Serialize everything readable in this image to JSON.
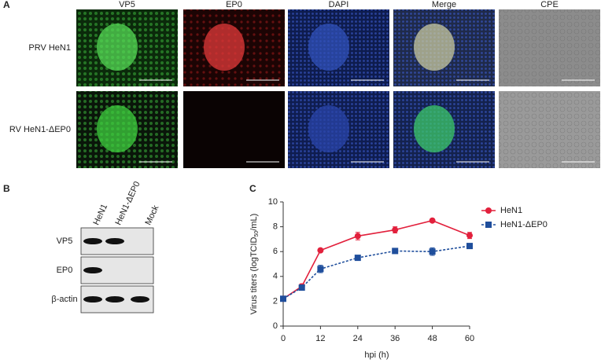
{
  "panel_a": {
    "label": "A",
    "columns": [
      "VP5",
      "EP0",
      "DAPI",
      "Merge",
      "CPE"
    ],
    "rows": [
      "PRV HeN1",
      "RV HeN1-ΔEP0"
    ]
  },
  "panel_b": {
    "label": "B",
    "lanes": [
      "HeN1",
      "HeN1-ΔEP0",
      "Mock"
    ],
    "bands": [
      "VP5",
      "EP0",
      "β-actin"
    ]
  },
  "chart_data": {
    "label": "C",
    "type": "line",
    "x_label": "hpi (h)",
    "y_label": {
      "main": "Virus titers (logTCID",
      "sub": "50",
      "end": "/mL)"
    },
    "x": [
      0,
      6,
      12,
      24,
      36,
      48,
      60
    ],
    "series": [
      {
        "name": "HeN1",
        "color": "#e2203c",
        "marker": "circle",
        "linestyle": "solid",
        "values": [
          2.2,
          3.2,
          6.1,
          7.25,
          7.75,
          8.5,
          7.3
        ],
        "errors": [
          0.1,
          0.2,
          0.05,
          0.3,
          0.25,
          0.05,
          0.25
        ]
      },
      {
        "name": "HeN1-ΔEP0",
        "color": "#1f4e9c",
        "marker": "square",
        "linestyle": "dashed",
        "values": [
          2.2,
          3.1,
          4.6,
          5.5,
          6.05,
          6.0,
          6.45
        ],
        "errors": [
          0.15,
          0.15,
          0.3,
          0.05,
          0.1,
          0.3,
          0.1
        ]
      }
    ],
    "xlim": [
      0,
      60
    ],
    "xticks": [
      0,
      12,
      24,
      36,
      48,
      60
    ],
    "ylim": [
      0,
      10
    ],
    "yticks": [
      0,
      2,
      4,
      6,
      8,
      10
    ],
    "legend": "right",
    "grid": false
  }
}
